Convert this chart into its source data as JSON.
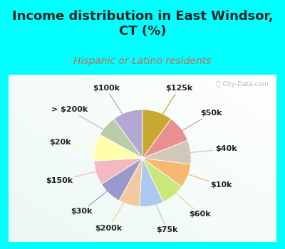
{
  "title": "Income distribution in East Windsor,\nCT (%)",
  "subtitle": "Hispanic or Latino residents",
  "bg_cyan": "#00FFFF",
  "watermark": "City-Data.com",
  "slices": [
    {
      "label": "$100k",
      "value": 10,
      "color": "#b3a8d4"
    },
    {
      "label": "> $200k",
      "value": 7,
      "color": "#b8ccaa"
    },
    {
      "label": "$20k",
      "value": 9,
      "color": "#ffffaa"
    },
    {
      "label": "$150k",
      "value": 8,
      "color": "#f4b8c0"
    },
    {
      "label": "$30k",
      "value": 8,
      "color": "#9999cc"
    },
    {
      "label": "$200k",
      "value": 7,
      "color": "#f5c9a0"
    },
    {
      "label": "$75k",
      "value": 8,
      "color": "#aac8f0"
    },
    {
      "label": "$60k",
      "value": 8,
      "color": "#c8e87a"
    },
    {
      "label": "$10k",
      "value": 8,
      "color": "#f5b870"
    },
    {
      "label": "$40k",
      "value": 8,
      "color": "#d0c8b8"
    },
    {
      "label": "$50k",
      "value": 9,
      "color": "#e89090"
    },
    {
      "label": "$125k",
      "value": 10,
      "color": "#c8a830"
    }
  ],
  "title_fontsize": 13,
  "subtitle_fontsize": 10,
  "label_fontsize": 8,
  "title_color": "#222222",
  "subtitle_color": "#cc6655"
}
